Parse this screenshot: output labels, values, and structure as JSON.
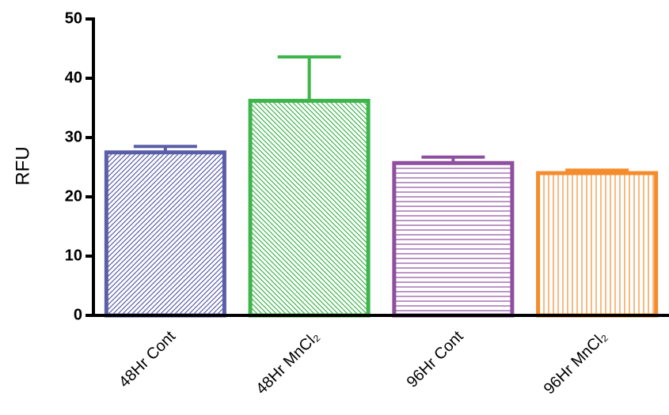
{
  "chart_data": {
    "type": "bar",
    "y_label": "RFU",
    "categories": [
      "48Hr Cont",
      "48Hr MnCl₂",
      "96Hr Cont",
      "96Hr MnCl₂"
    ],
    "values": [
      27.5,
      36.2,
      25.7,
      24.0
    ],
    "errors": [
      1.0,
      7.4,
      1.0,
      0.5
    ],
    "colors": [
      "#5a5ea8",
      "#3db54a",
      "#8f4f9f",
      "#f58b2a"
    ],
    "hatches": [
      "/",
      "\\",
      "-",
      "|"
    ],
    "ylim": [
      0,
      50
    ],
    "yticks": [
      0,
      10,
      20,
      30,
      40,
      50
    ],
    "grid": false
  }
}
